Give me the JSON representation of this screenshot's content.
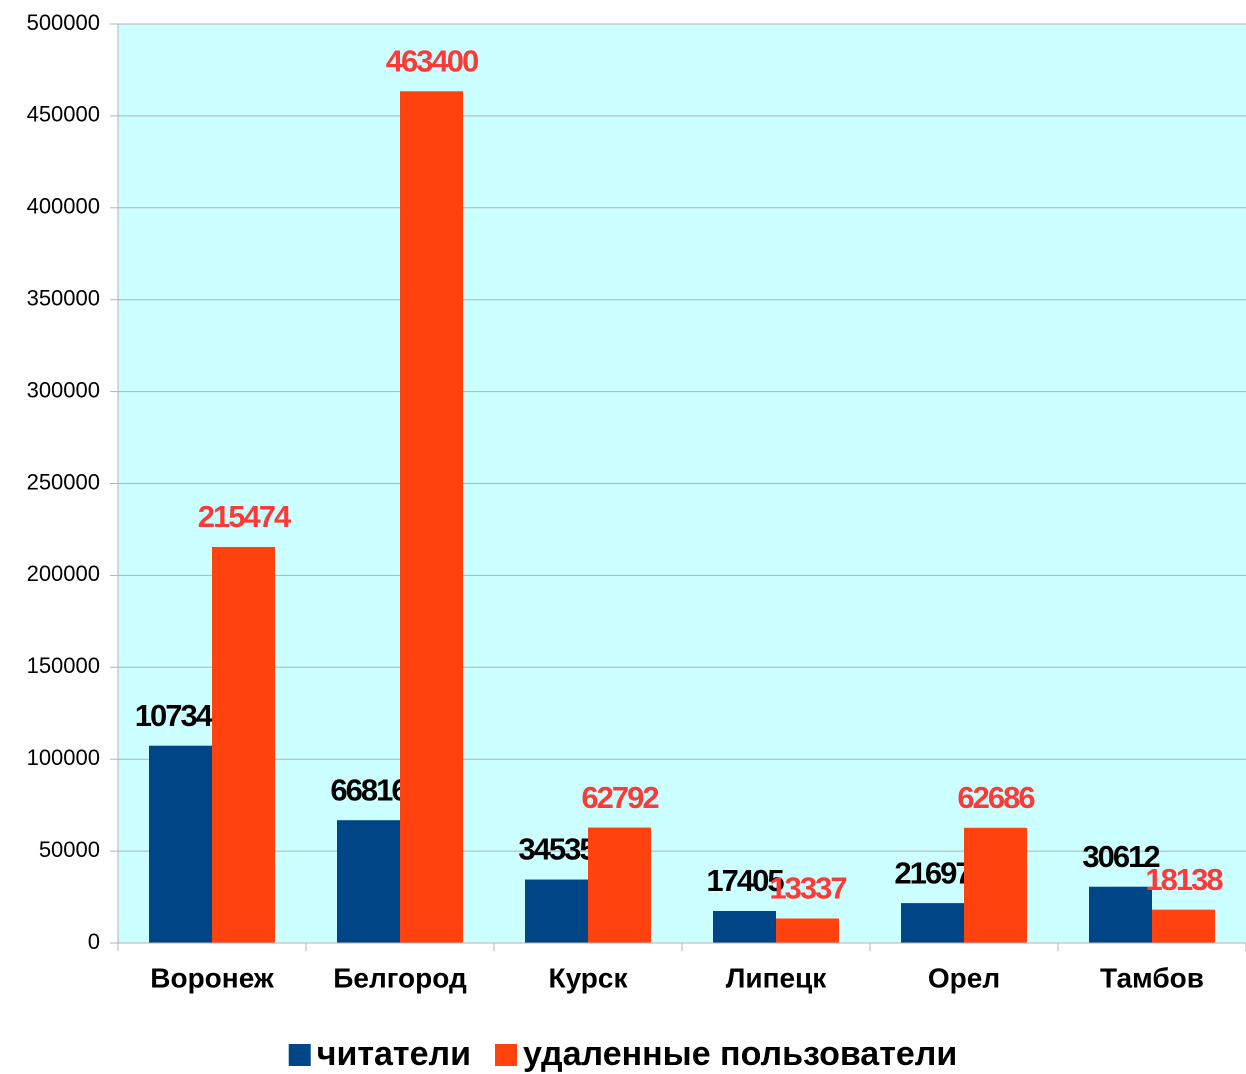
{
  "chart_data": {
    "type": "bar",
    "categories": [
      "Воронеж",
      "Белгород",
      "Курск",
      "Липецк",
      "Орел",
      "Тамбов"
    ],
    "series": [
      {
        "name": "читатели",
        "color": "#004586",
        "label_color": "#000000",
        "values": [
          107349,
          66816,
          34535,
          17405,
          21697,
          30612
        ]
      },
      {
        "name": "удаленные пользователи",
        "color": "#ff420e",
        "label_color": "#ff3838",
        "values": [
          215474,
          463400,
          62792,
          13337,
          62686,
          18138
        ]
      }
    ],
    "ylim": [
      0,
      500000
    ],
    "yticks": [
      0,
      50000,
      100000,
      150000,
      200000,
      250000,
      300000,
      350000,
      400000,
      450000,
      500000
    ],
    "grid": true,
    "plot_background": "#ccffff",
    "legend": "bottom"
  }
}
